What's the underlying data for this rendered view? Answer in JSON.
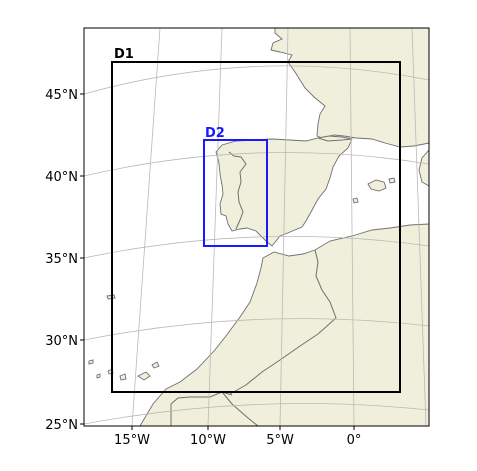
{
  "map": {
    "colors": {
      "land": "#f0efdb",
      "coast": "#6f6f6f",
      "grid": "#b9b9b9",
      "frame": "#000000",
      "domain_d1": "#000000",
      "domain_d2": "#1a1aff",
      "sea": "#ffffff"
    },
    "lat_labels": [
      "45°N",
      "40°N",
      "35°N",
      "30°N",
      "25°N"
    ],
    "lon_labels": [
      "15°W",
      "10°W",
      "5°W",
      "0°"
    ],
    "domains": [
      {
        "label": "D1"
      },
      {
        "label": "D2"
      }
    ]
  }
}
